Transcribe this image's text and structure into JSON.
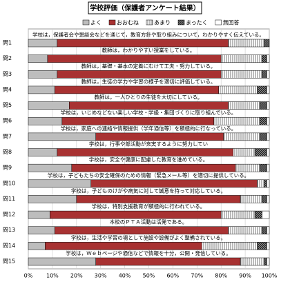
{
  "chart_data": {
    "type": "stacked-bar-horizontal",
    "title": "学校評価（保護者アンケート結果）",
    "categories": [
      "問1",
      "問2",
      "問3",
      "問4",
      "問5",
      "問6",
      "問7",
      "問8",
      "問9",
      "問10",
      "問11",
      "問12",
      "問13",
      "問14",
      "問15"
    ],
    "questions": [
      "学校は，保護者会や懇談会などを通じて，教育方針や取り組みについて，わかりやすく伝えている。",
      "教師は，わかりやすい授業をしている。",
      "教師は，基礎・基本の定着にむけて工夫・努力している。",
      "教師は，生徒の学力や学習の様子を適切に評価している。",
      "教師は，一人ひとりの生徒を大切にしている。",
      "学校は，いじめなどない楽しい学校・学級・集団づくりに取り組んでいる。",
      "学校は，家庭への連絡や情報提供（学年通信等）を積極的に行なっている。",
      "学校は，行事や部活動が充実するように努力してい",
      "学校は，安全や健康に配慮した教育を進めている。",
      "学校は，子どもたちの安全確保のための情報（緊急メール等）を適切に提供している。",
      "学校は，子どものけがや病気に対して誠意を持って対応している。",
      "学校は，特別支援教育が積極的に行われている。",
      "本校のＰＴＡ活動は活発である。",
      "学校は，生活や学習の場として施設や設備がよく整備されている。",
      "学校は，Ｗｅｂページや通信などで情報を十分，公開・発信している。"
    ],
    "series": [
      {
        "name": "よく",
        "color": "#bdbdbd",
        "values": [
          12,
          8,
          12,
          11,
          17,
          14,
          28,
          12,
          18,
          26,
          20,
          9,
          11,
          7,
          28
        ]
      },
      {
        "name": "おおむね",
        "color": "#a83232",
        "values": [
          71,
          72,
          68,
          68,
          66,
          63,
          53,
          73,
          68,
          69,
          68,
          71,
          72,
          65,
          60
        ]
      },
      {
        "name": "あまり",
        "color": "#f2f2f2",
        "pattern": "stripes",
        "values": [
          15,
          17,
          17,
          16,
          13,
          19,
          15,
          9,
          10,
          3,
          9,
          14,
          14,
          23,
          10
        ]
      },
      {
        "name": "まったく",
        "color": "#3a3a3a",
        "pattern": "checks",
        "values": [
          2,
          2,
          2,
          4,
          3,
          3,
          3,
          5,
          3,
          1,
          2,
          3,
          2,
          4,
          1
        ]
      },
      {
        "name": "無回答",
        "color": "#ffffff",
        "values": [
          0,
          1,
          1,
          1,
          1,
          1,
          1,
          1,
          1,
          1,
          1,
          3,
          1,
          1,
          1
        ]
      }
    ],
    "xlim": [
      0,
      100
    ],
    "xticks": [
      {
        "value": 0,
        "label": "0%"
      },
      {
        "value": 10,
        "label": "10%"
      },
      {
        "value": 20,
        "label": "20%"
      },
      {
        "value": 30,
        "label": "30%"
      },
      {
        "value": 40,
        "label": "40%"
      },
      {
        "value": 50,
        "label": "50%"
      },
      {
        "value": 60,
        "label": "60%"
      },
      {
        "value": 70,
        "label": "70%"
      },
      {
        "value": 80,
        "label": "80%"
      },
      {
        "value": 90,
        "label": "90%"
      },
      {
        "value": 100,
        "label": "100%"
      }
    ]
  }
}
